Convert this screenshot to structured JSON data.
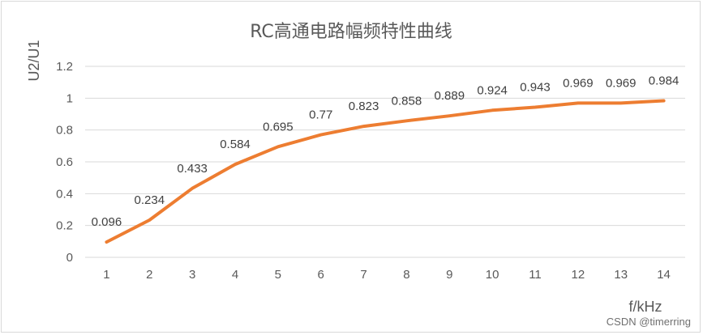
{
  "chart_data": {
    "type": "line",
    "title": "RC高通电路幅频特性曲线",
    "xlabel": "f/kHz",
    "ylabel": "U2/U1",
    "categories": [
      "1",
      "2",
      "3",
      "4",
      "5",
      "6",
      "7",
      "8",
      "9",
      "10",
      "11",
      "12",
      "13",
      "14"
    ],
    "series": [
      {
        "values": [
          0.096,
          0.234,
          0.433,
          0.584,
          0.695,
          0.77,
          0.823,
          0.858,
          0.889,
          0.924,
          0.943,
          0.969,
          0.969,
          0.984
        ],
        "color": "#ed7d31"
      }
    ],
    "ylim": [
      0,
      1.2
    ],
    "yticks": [
      "0",
      "0.2",
      "0.4",
      "0.6",
      "0.8",
      "1",
      "1.2"
    ],
    "grid": true,
    "legend": "none",
    "data_labels": [
      "0.096",
      "0.234",
      "0.433",
      "0.584",
      "0.695",
      "0.77",
      "0.823",
      "0.858",
      "0.889",
      "0.924",
      "0.943",
      "0.969",
      "0.969",
      "0.984"
    ]
  },
  "watermark": "CSDN @timerring"
}
